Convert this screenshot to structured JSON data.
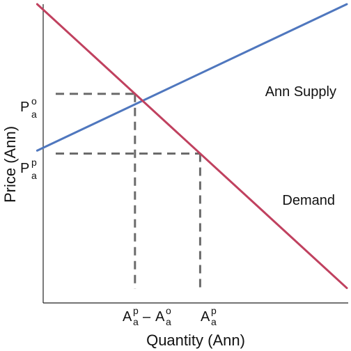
{
  "chart_data": {
    "type": "line",
    "xlabel": "Quantity (Ann)",
    "ylabel": "Price (Ann)",
    "xlim": [
      0,
      10
    ],
    "ylim": [
      0,
      10
    ],
    "grid": false,
    "series": [
      {
        "name": "Ann Supply",
        "color": "#4f77be",
        "x": [
          0.5,
          10
        ],
        "y": [
          5.1,
          10
        ]
      },
      {
        "name": "Demand",
        "color": "#c0415f",
        "x": [
          0.5,
          10
        ],
        "y": [
          10,
          0.5
        ]
      }
    ],
    "guides": [
      {
        "x": 3.5,
        "y": 7.0
      },
      {
        "x": 5.5,
        "y": 5.0
      }
    ],
    "series_label_positions": [
      "right, above supply curve",
      "right, below-right of demand curve"
    ],
    "y_ticks": [
      {
        "base": "P",
        "sub": "a",
        "sup": "o",
        "value": 7.0
      },
      {
        "base": "P",
        "sub": "a",
        "sup": "p",
        "value": 5.0
      }
    ],
    "x_ticks": [
      {
        "base1": "A",
        "sub1": "a",
        "sup1": "p",
        "op": "–",
        "base2": "A",
        "sub2": "a",
        "sup2": "o",
        "value": 3.5
      },
      {
        "base1": "A",
        "sub1": "a",
        "sup1": "p",
        "value": 5.5
      }
    ]
  }
}
